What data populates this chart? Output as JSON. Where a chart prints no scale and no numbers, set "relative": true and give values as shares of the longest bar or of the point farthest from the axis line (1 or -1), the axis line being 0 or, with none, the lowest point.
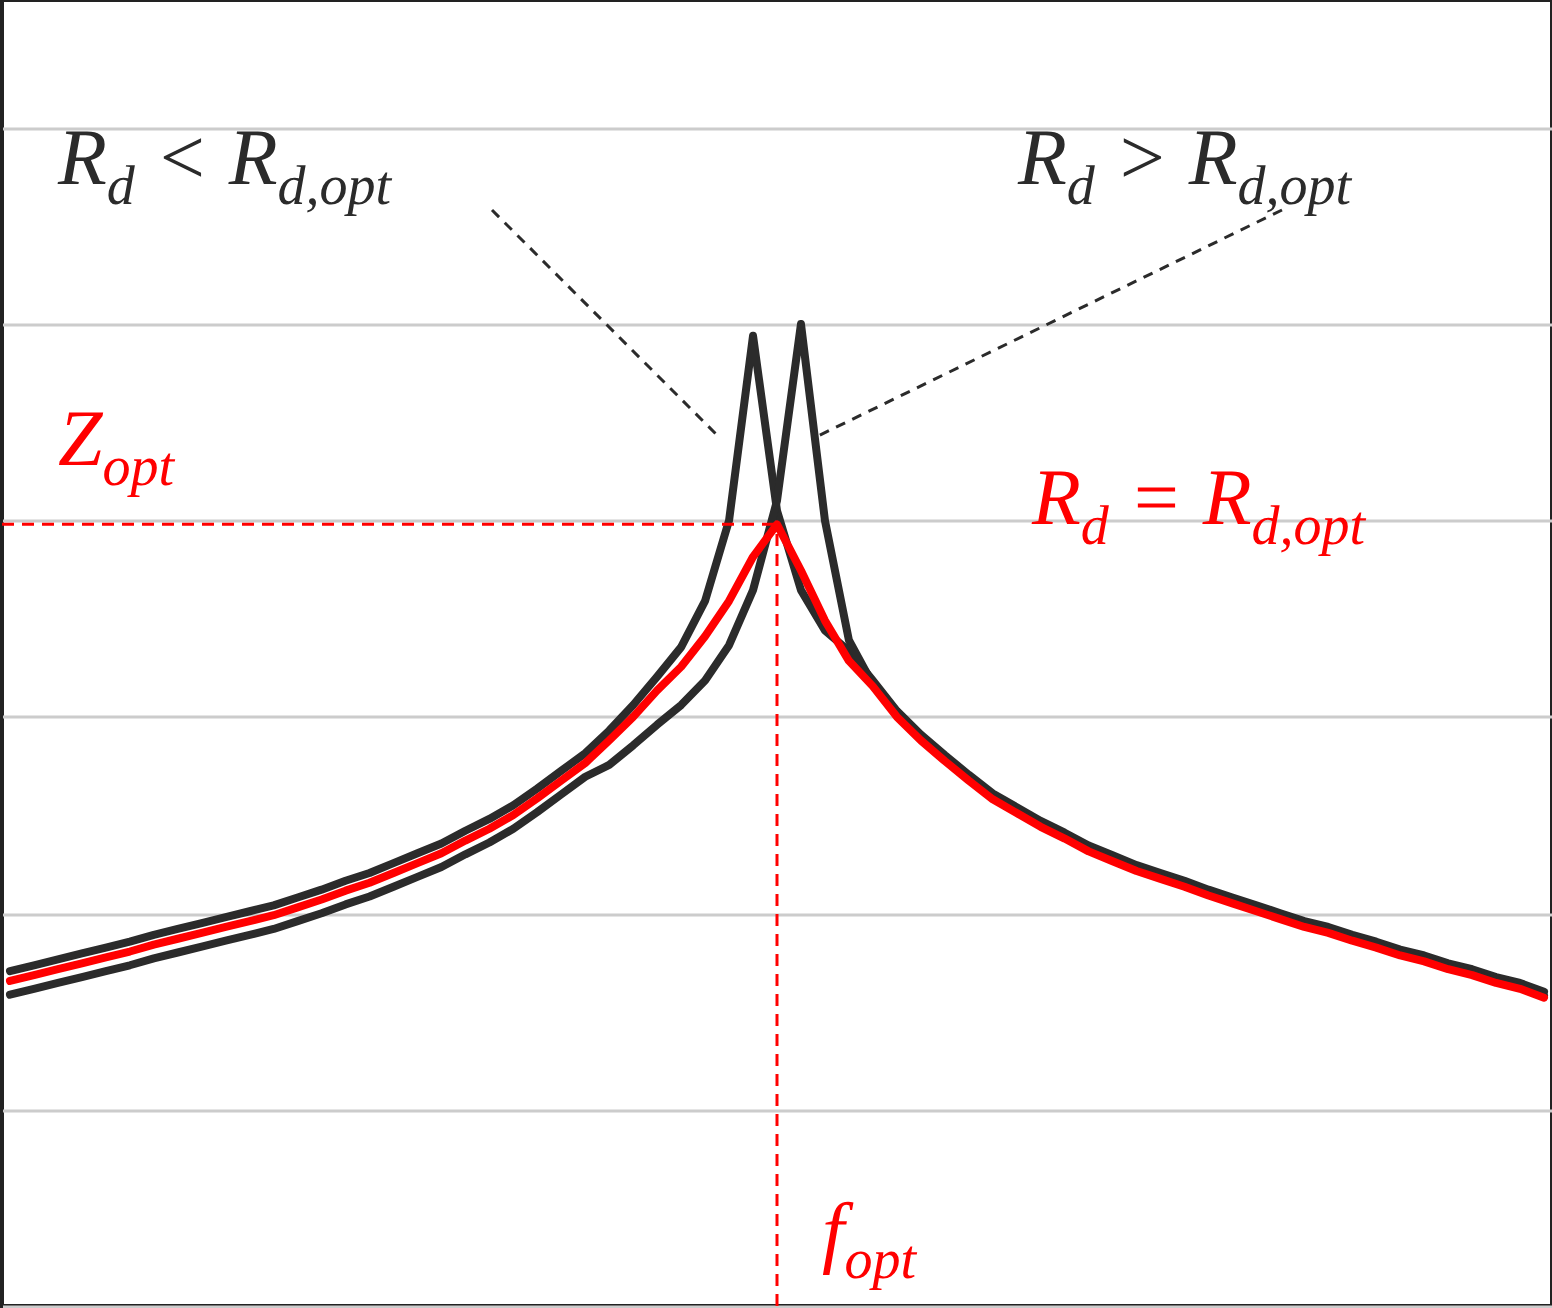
{
  "chart_data": {
    "type": "line",
    "relative": true,
    "grid": "y",
    "line_style": "solid",
    "marker": "none",
    "categories": [
      null,
      null,
      null,
      null,
      null,
      null,
      null,
      null,
      null,
      null,
      null,
      null,
      null,
      null,
      null,
      null,
      null,
      null,
      null,
      null,
      null,
      null,
      null,
      null,
      null,
      null,
      null,
      null,
      null,
      null,
      null,
      null,
      null,
      null,
      null,
      null,
      null,
      null,
      null,
      null,
      null,
      null,
      null,
      null,
      null,
      null,
      null,
      null,
      null,
      null,
      null,
      null,
      null,
      null,
      null,
      null,
      null,
      null,
      null,
      null,
      null,
      null,
      null,
      null,
      null
    ],
    "series": [
      {
        "name": "R$_{d}$ < R$_{d,opt}$",
        "color": "#2b2b2b",
        "values": [
          0.341,
          0.347,
          0.353,
          0.359,
          0.365,
          0.371,
          0.378,
          0.384,
          0.39,
          0.396,
          0.402,
          0.408,
          0.416,
          0.424,
          0.433,
          0.441,
          0.451,
          0.461,
          0.471,
          0.484,
          0.496,
          0.51,
          0.527,
          0.545,
          0.563,
          0.586,
          0.612,
          0.641,
          0.671,
          0.718,
          0.8,
          0.988,
          0.81,
          0.729,
          0.688,
          0.667,
          0.637,
          0.606,
          0.582,
          0.561,
          0.541,
          0.522,
          0.508,
          0.494,
          0.482,
          0.469,
          0.459,
          0.449,
          0.441,
          0.433,
          0.424,
          0.416,
          0.408,
          0.4,
          0.392,
          0.386,
          0.378,
          0.371,
          0.363,
          0.357,
          0.349,
          0.343,
          0.335,
          0.329,
          0.32
        ]
      },
      {
        "name": "R$_{d}$ > R$_{d,opt}$",
        "color": "#2b2b2b",
        "values": [
          0.317,
          0.323,
          0.329,
          0.335,
          0.341,
          0.347,
          0.354,
          0.36,
          0.366,
          0.372,
          0.378,
          0.384,
          0.392,
          0.4,
          0.409,
          0.417,
          0.427,
          0.437,
          0.447,
          0.46,
          0.472,
          0.486,
          0.503,
          0.521,
          0.539,
          0.551,
          0.571,
          0.592,
          0.612,
          0.637,
          0.673,
          0.729,
          0.82,
          1.0,
          0.8,
          0.678,
          0.633,
          0.602,
          0.578,
          0.557,
          0.537,
          0.518,
          0.504,
          0.49,
          0.478,
          0.465,
          0.455,
          0.445,
          0.437,
          0.429,
          0.42,
          0.412,
          0.404,
          0.396,
          0.388,
          0.382,
          0.374,
          0.367,
          0.359,
          0.353,
          0.345,
          0.339,
          0.331,
          0.325,
          0.316
        ]
      },
      {
        "name": "R$_{d}$ = R$_{d,opt}$",
        "color": "#ff0000",
        "values": [
          0.331,
          0.337,
          0.343,
          0.349,
          0.355,
          0.361,
          0.368,
          0.374,
          0.38,
          0.386,
          0.392,
          0.398,
          0.406,
          0.414,
          0.423,
          0.431,
          0.441,
          0.451,
          0.461,
          0.474,
          0.486,
          0.5,
          0.517,
          0.535,
          0.553,
          0.576,
          0.6,
          0.627,
          0.651,
          0.682,
          0.718,
          0.763,
          0.796,
          0.749,
          0.698,
          0.657,
          0.631,
          0.6,
          0.576,
          0.555,
          0.535,
          0.516,
          0.502,
          0.488,
          0.476,
          0.463,
          0.453,
          0.443,
          0.435,
          0.427,
          0.418,
          0.41,
          0.402,
          0.394,
          0.386,
          0.38,
          0.372,
          0.365,
          0.357,
          0.351,
          0.343,
          0.337,
          0.329,
          0.323,
          0.314
        ]
      }
    ],
    "ref_lines": [
      {
        "axis": "y",
        "value": 0.796,
        "label": "Z$_{opt}$",
        "color": "#ff0000",
        "line_style": "dashed"
      },
      {
        "axis": "x",
        "label": "f$_{opt}$",
        "color": "#ff0000",
        "line_style": "dashed"
      }
    ]
  }
}
